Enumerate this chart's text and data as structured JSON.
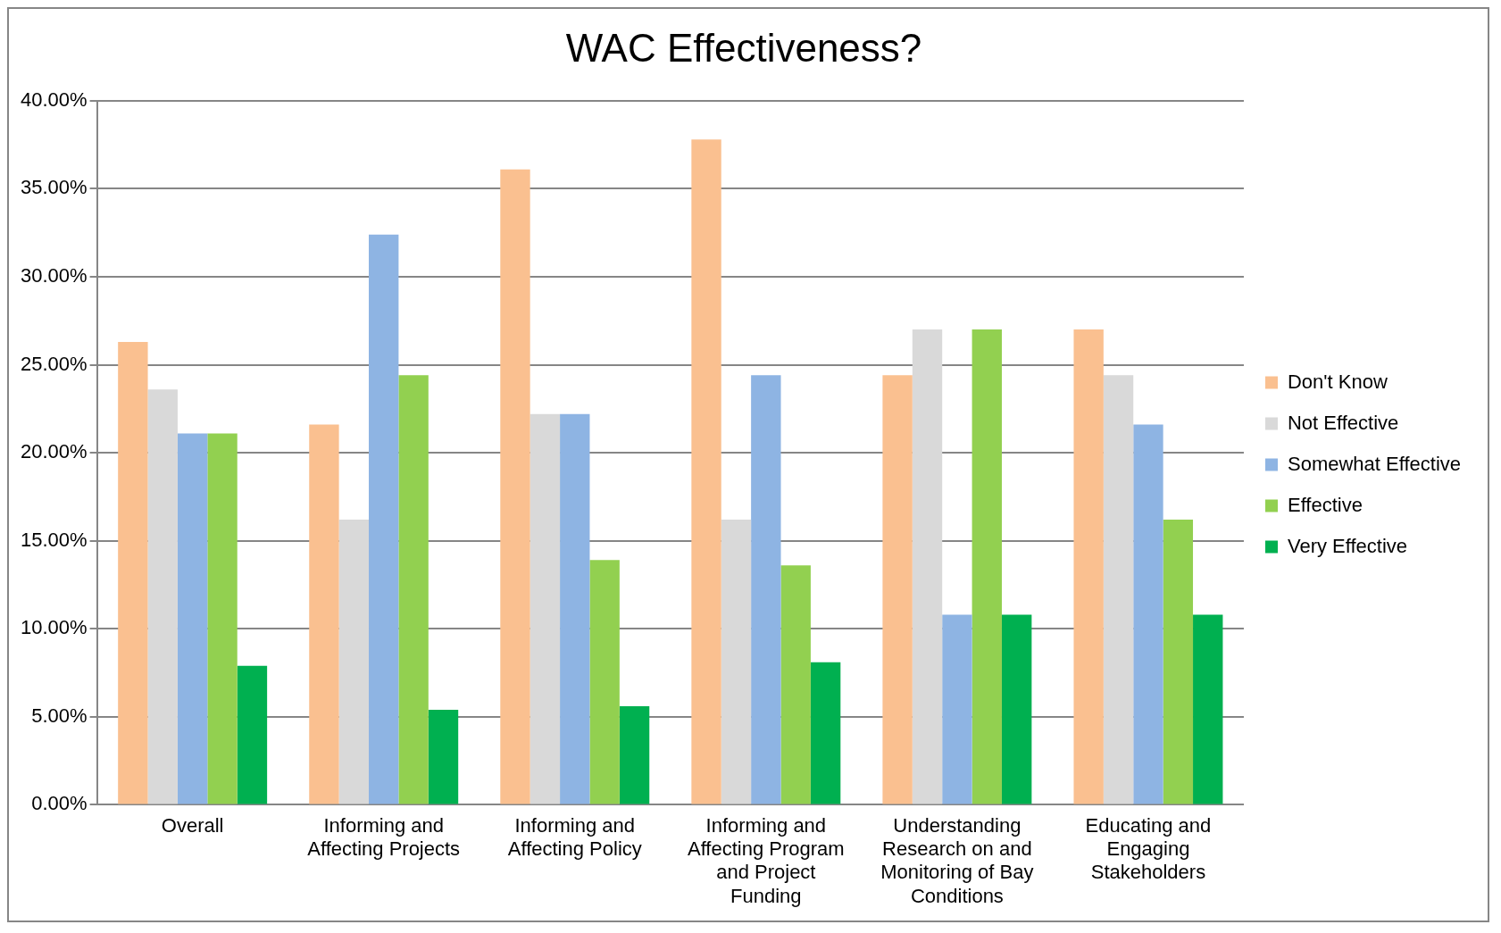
{
  "chart_data": {
    "type": "bar",
    "title": "WAC Effectiveness?",
    "categories": [
      "Overall",
      "Informing and Affecting Projects",
      "Informing and Affecting Policy",
      "Informing and Affecting Program and Project Funding",
      "Understanding Research on and Monitoring of Bay Conditions",
      "Educating and Engaging Stakeholders"
    ],
    "series": [
      {
        "name": "Don't Know",
        "color": "#fac090",
        "values": [
          26.3,
          21.6,
          36.1,
          37.8,
          24.4,
          27.0
        ]
      },
      {
        "name": "Not Effective",
        "color": "#d9d9d9",
        "values": [
          23.6,
          16.2,
          22.2,
          16.2,
          27.0,
          24.4
        ]
      },
      {
        "name": "Somewhat Effective",
        "color": "#8eb4e3",
        "values": [
          21.1,
          32.4,
          22.2,
          24.4,
          10.8,
          21.6
        ]
      },
      {
        "name": "Effective",
        "color": "#92d050",
        "values": [
          21.1,
          24.4,
          13.9,
          13.6,
          27.0,
          16.2
        ]
      },
      {
        "name": "Very Effective",
        "color": "#00b050",
        "values": [
          7.9,
          5.4,
          5.6,
          8.1,
          10.8,
          10.8
        ]
      }
    ],
    "ylim": [
      0,
      40
    ],
    "yticks": [
      {
        "value": 0,
        "label": "0.00%"
      },
      {
        "value": 5,
        "label": "5.00%"
      },
      {
        "value": 10,
        "label": "10.00%"
      },
      {
        "value": 15,
        "label": "15.00%"
      },
      {
        "value": 20,
        "label": "20.00%"
      },
      {
        "value": 25,
        "label": "25.00%"
      },
      {
        "value": 30,
        "label": "30.00%"
      },
      {
        "value": 35,
        "label": "35.00%"
      },
      {
        "value": 40,
        "label": "40.00%"
      }
    ],
    "grid": "y",
    "legend": "right"
  }
}
